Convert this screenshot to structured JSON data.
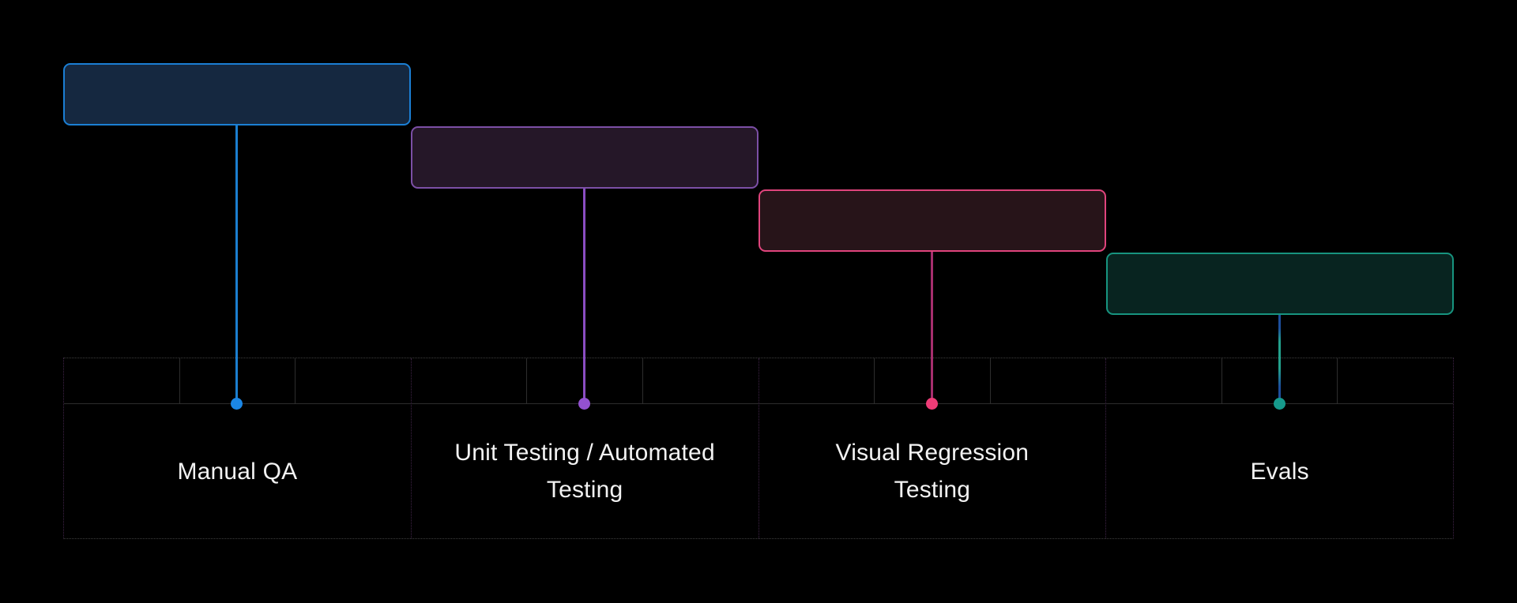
{
  "canvas": {
    "background": "#000000",
    "text_color": "#f2f2f2"
  },
  "stages": [
    {
      "id": "manual-qa",
      "label": "Manual QA",
      "colors": {
        "box_border": "#1b7fd4",
        "box_fill": "#152840",
        "line": "#1b7fd0",
        "dot": "#1b87e6"
      }
    },
    {
      "id": "unit-automated-testing",
      "label": "Unit Testing / Automated Testing",
      "colors": {
        "box_border": "#7c4fa6",
        "box_fill": "#251728",
        "line": "#8a4dc2",
        "dot": "#9351d1"
      }
    },
    {
      "id": "visual-regression-testing",
      "label": "Visual Regression Testing",
      "colors": {
        "box_border": "#e0447c",
        "box_fill": "#271419",
        "line": "#a62e6d",
        "dot": "#ee3c77"
      }
    },
    {
      "id": "evals",
      "label": "Evals",
      "colors": {
        "box_border": "#17947f",
        "box_fill": "#082420",
        "line": "#1d4f9c",
        "line_mid": "#23a18c",
        "dot": "#169a8c"
      }
    }
  ],
  "grid": {
    "columns": 4,
    "cells_per_column": 3,
    "colors": {
      "outer_border": "#3e3e3e",
      "inner_border": "#2d2d2d",
      "column_divider": "#3f2347"
    }
  }
}
